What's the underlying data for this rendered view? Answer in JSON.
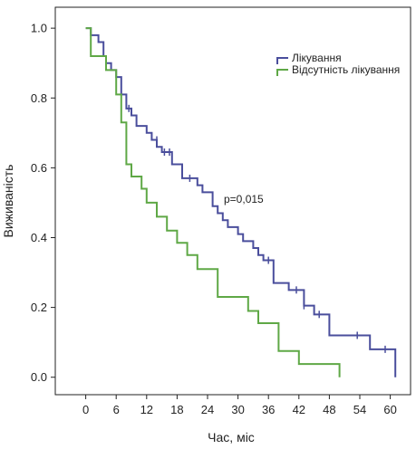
{
  "chart_data": {
    "type": "line",
    "subtype": "kaplan-meier-step",
    "xlabel": "Час, міс",
    "ylabel": "Виживаність",
    "xlim": [
      -6,
      64
    ],
    "ylim": [
      -0.05,
      1.06
    ],
    "xticks": [
      0,
      6,
      12,
      18,
      24,
      30,
      36,
      42,
      48,
      54,
      60
    ],
    "yticks": [
      0.0,
      0.2,
      0.4,
      0.6,
      0.8,
      1.0
    ],
    "ytick_labels": [
      "0.0",
      "0.2",
      "0.4",
      "0.6",
      "0.8",
      "1.0"
    ],
    "grid": false,
    "legend_position": "top-right",
    "annotation": "p=0,015",
    "series": [
      {
        "name": "Лікування",
        "color": "#4a4e9c",
        "steps": [
          [
            0,
            1.0
          ],
          [
            1,
            0.98
          ],
          [
            2.5,
            0.96
          ],
          [
            3.5,
            0.92
          ],
          [
            4,
            0.9
          ],
          [
            5,
            0.88
          ],
          [
            6,
            0.86
          ],
          [
            7,
            0.81
          ],
          [
            8,
            0.77
          ],
          [
            9,
            0.75
          ],
          [
            10,
            0.72
          ],
          [
            12,
            0.7
          ],
          [
            13,
            0.68
          ],
          [
            14,
            0.66
          ],
          [
            15,
            0.645
          ],
          [
            17,
            0.61
          ],
          [
            19,
            0.57
          ],
          [
            22,
            0.55
          ],
          [
            23,
            0.53
          ],
          [
            25,
            0.49
          ],
          [
            26,
            0.47
          ],
          [
            27,
            0.45
          ],
          [
            28,
            0.43
          ],
          [
            30,
            0.41
          ],
          [
            31,
            0.39
          ],
          [
            33,
            0.37
          ],
          [
            34,
            0.35
          ],
          [
            35,
            0.335
          ],
          [
            37,
            0.27
          ],
          [
            40,
            0.25
          ],
          [
            43,
            0.205
          ],
          [
            45,
            0.18
          ],
          [
            48,
            0.12
          ],
          [
            56,
            0.08
          ],
          [
            61,
            0.0
          ]
        ],
        "censored": [
          [
            8.5,
            0.77
          ],
          [
            13,
            0.69
          ],
          [
            14,
            0.68
          ],
          [
            15.5,
            0.645
          ],
          [
            16.5,
            0.645
          ],
          [
            20.5,
            0.57
          ],
          [
            36,
            0.335
          ],
          [
            41.5,
            0.25
          ],
          [
            43,
            0.205
          ],
          [
            46,
            0.18
          ],
          [
            53.5,
            0.12
          ],
          [
            59,
            0.08
          ]
        ],
        "end_x": 61
      },
      {
        "name": "Відсутність лікування",
        "color": "#5fa846",
        "steps": [
          [
            0,
            1.0
          ],
          [
            1,
            0.92
          ],
          [
            4,
            0.88
          ],
          [
            6,
            0.81
          ],
          [
            7,
            0.73
          ],
          [
            8,
            0.61
          ],
          [
            9,
            0.575
          ],
          [
            11,
            0.54
          ],
          [
            12,
            0.5
          ],
          [
            14,
            0.46
          ],
          [
            16,
            0.42
          ],
          [
            18,
            0.385
          ],
          [
            20,
            0.35
          ],
          [
            22,
            0.31
          ],
          [
            26,
            0.23
          ],
          [
            32,
            0.19
          ],
          [
            34,
            0.155
          ],
          [
            38,
            0.075
          ],
          [
            42,
            0.038
          ],
          [
            50,
            0.0
          ]
        ],
        "censored": [],
        "end_x": 50
      }
    ]
  }
}
